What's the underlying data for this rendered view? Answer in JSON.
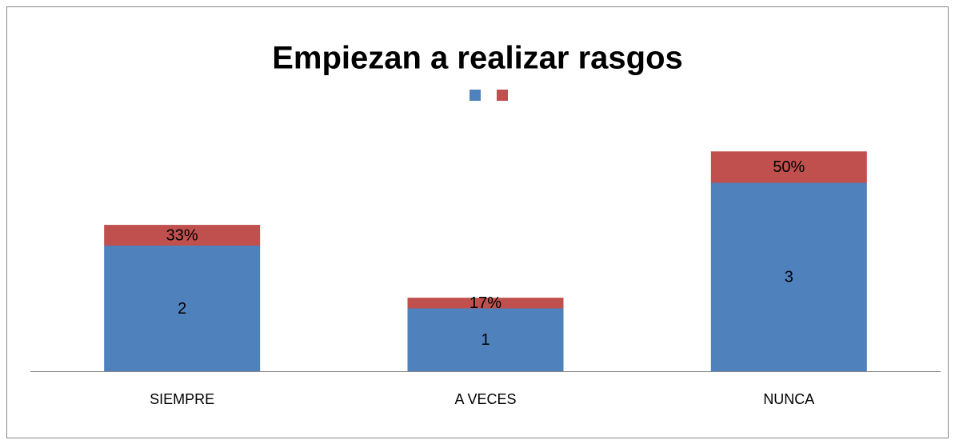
{
  "chart_data": {
    "type": "stacked_bar",
    "title": "Empiezan a realizar rasgos",
    "categories": [
      "SIEMPRE",
      "A VECES",
      "NUNCA"
    ],
    "series": [
      {
        "color": "#4f81bd",
        "values": [
          2,
          1,
          3
        ]
      },
      {
        "color": "#c0504d",
        "values": [
          0.33,
          0.17,
          0.5
        ],
        "value_labels": [
          "33%",
          "17%",
          "50%"
        ]
      }
    ],
    "ylim": [
      0,
      4
    ]
  }
}
